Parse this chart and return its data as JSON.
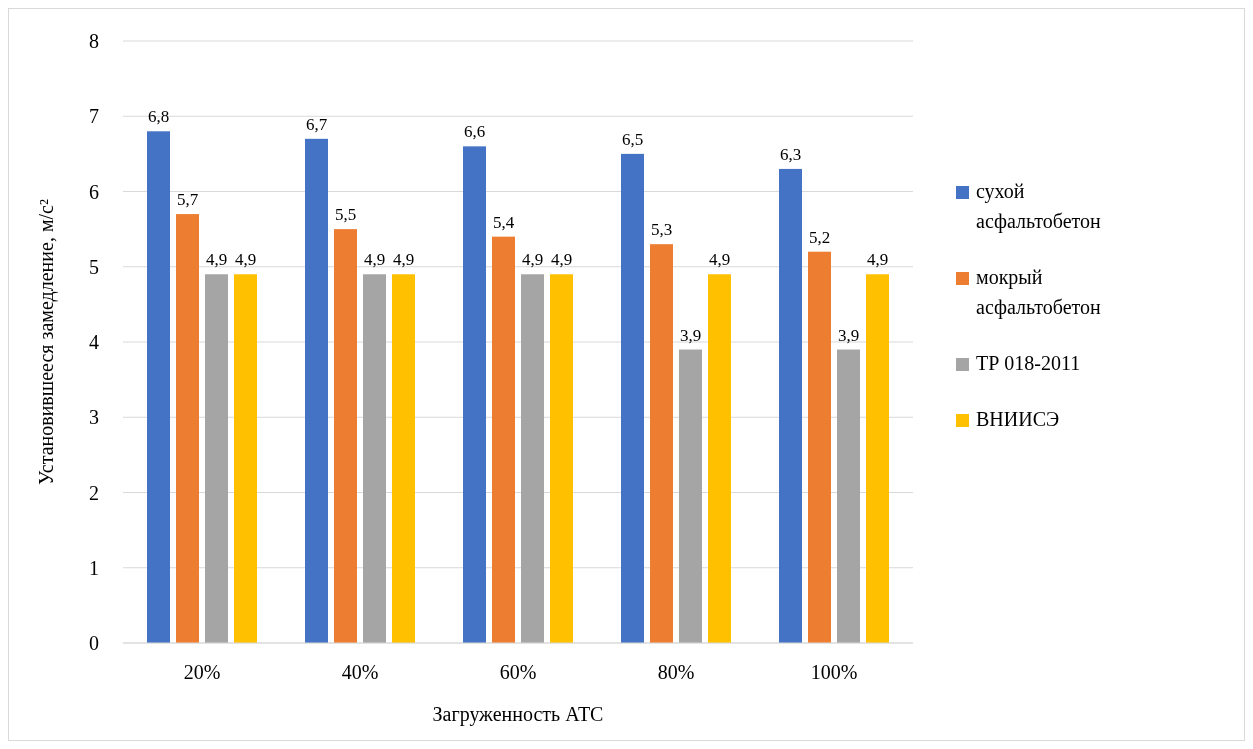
{
  "chart_data": {
    "type": "bar",
    "xlabel": "Загруженность АТС",
    "ylabel": "Установившееся замедление, м/с²",
    "categories": [
      "20%",
      "40%",
      "60%",
      "80%",
      "100%"
    ],
    "series": [
      {
        "name": "сухой асфальтобетон",
        "color": "#4472c4",
        "values": [
          6.8,
          6.7,
          6.6,
          6.5,
          6.3
        ],
        "value_labels": [
          "6,8",
          "6,7",
          "6,6",
          "6,5",
          "6,3"
        ]
      },
      {
        "name": "мокрый асфальтобетон",
        "color": "#ed7d31",
        "values": [
          5.7,
          5.5,
          5.4,
          5.3,
          5.2
        ],
        "value_labels": [
          "5,7",
          "5,5",
          "5,4",
          "5,3",
          "5,2"
        ]
      },
      {
        "name": "ТР 018-2011",
        "color": "#a5a5a5",
        "values": [
          4.9,
          4.9,
          4.9,
          3.9,
          3.9
        ],
        "value_labels": [
          "4,9",
          "4,9",
          "4,9",
          "3,9",
          "3,9"
        ]
      },
      {
        "name": "ВНИИСЭ",
        "color": "#ffc000",
        "values": [
          4.9,
          4.9,
          4.9,
          4.9,
          4.9
        ],
        "value_labels": [
          "4,9",
          "4,9",
          "4,9",
          "4,9",
          "4,9"
        ]
      }
    ],
    "ylim": [
      0,
      8
    ],
    "yticks": [
      0,
      1,
      2,
      3,
      4,
      5,
      6,
      7,
      8
    ],
    "grid": "y",
    "legend": "right"
  }
}
